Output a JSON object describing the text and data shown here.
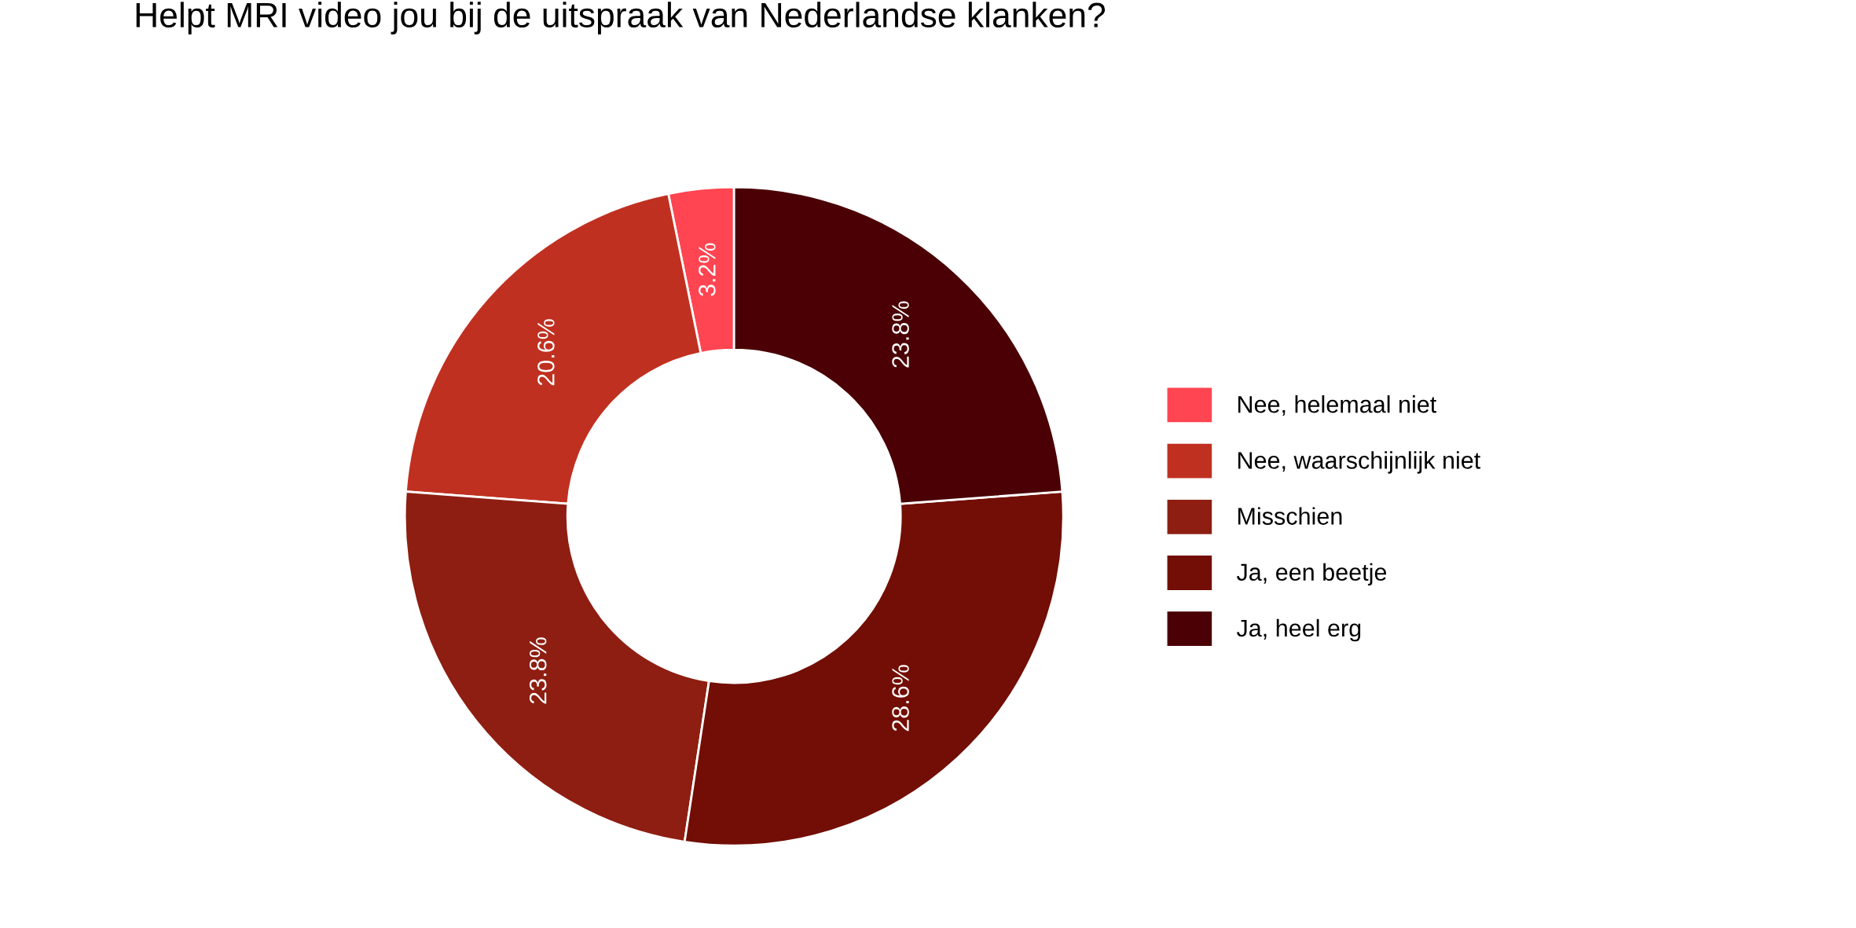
{
  "chart_data": {
    "type": "donut",
    "title": "Helpt MRI video jou bij de uitspraak van Nederlandse klanken?",
    "categories": [
      "Nee, helemaal niet",
      "Nee, waarschijnlijk niet",
      "Misschien",
      "Ja, een beetje",
      "Ja, heel erg"
    ],
    "values": [
      3.2,
      20.6,
      23.8,
      28.6,
      23.8
    ],
    "value_labels": [
      "3.2%",
      "20.6%",
      "23.8%",
      "28.6%",
      "23.8%"
    ],
    "colors": [
      "#ff4551",
      "#c03020",
      "#8e1e12",
      "#720e05",
      "#4a0005"
    ],
    "legend": "right"
  }
}
